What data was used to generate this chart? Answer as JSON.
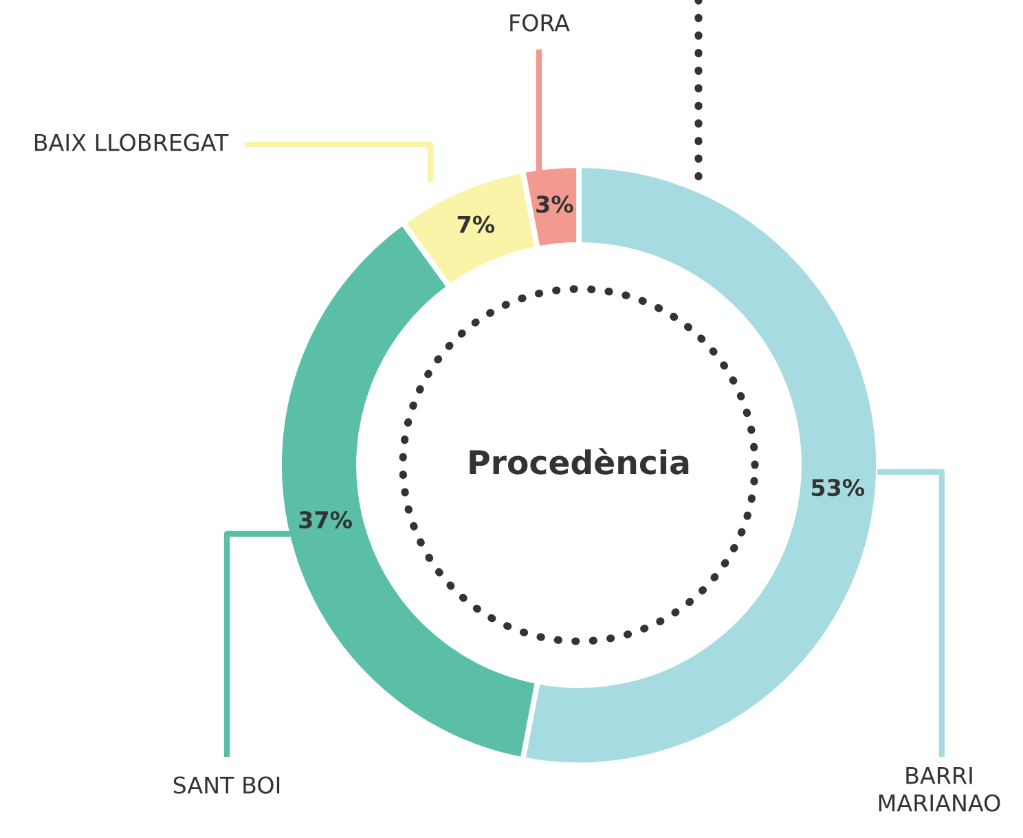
{
  "chart_data": {
    "type": "donut",
    "title": "Procedència",
    "categories": [
      "BARRI MARIANAO",
      "SANT BOI",
      "BAIX LLOBREGAT",
      "FORA"
    ],
    "values": [
      53,
      37,
      7,
      3
    ],
    "colors": [
      "#a6dce1",
      "#5bbfa8",
      "#f9f4a8",
      "#f29a90"
    ],
    "value_labels": [
      "53%",
      "37%",
      "7%",
      "3%"
    ],
    "legend": false
  }
}
